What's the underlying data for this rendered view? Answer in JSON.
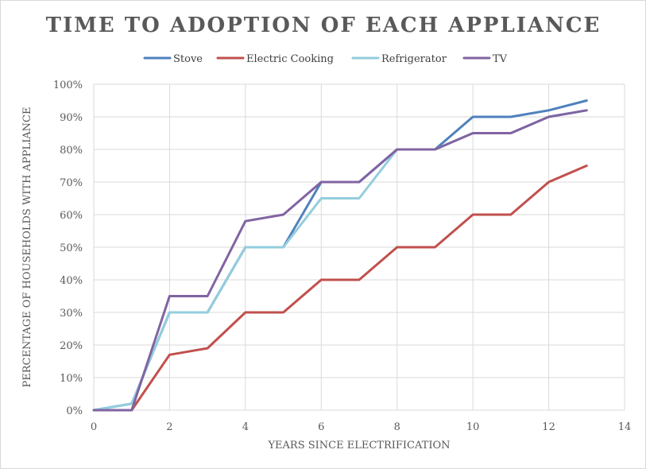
{
  "chart_data": {
    "type": "line",
    "title": "TIME TO ADOPTION OF EACH APPLIANCE",
    "xlabel": "YEARS SINCE ELECTRIFICATION",
    "ylabel": "PERCENTAGE OF HOUSEHOLDS WITH APPLIANCE",
    "xlim": [
      0,
      14
    ],
    "ylim": [
      0,
      100
    ],
    "x_ticks": [
      0,
      2,
      4,
      6,
      8,
      10,
      12,
      14
    ],
    "y_ticks": [
      0,
      10,
      20,
      30,
      40,
      50,
      60,
      70,
      80,
      90,
      100
    ],
    "y_tick_suffix": "%",
    "grid": true,
    "legend_position": "top",
    "x": [
      0,
      1,
      2,
      3,
      4,
      5,
      6,
      7,
      8,
      9,
      10,
      11,
      12,
      13
    ],
    "series": [
      {
        "name": "Stove",
        "color": "#4f81bd",
        "values": [
          0,
          2,
          30,
          30,
          50,
          50,
          70,
          70,
          80,
          80,
          90,
          90,
          92,
          95
        ]
      },
      {
        "name": "Electric Cooking",
        "color": "#c0504d",
        "values": [
          0,
          0,
          17,
          19,
          30,
          30,
          40,
          40,
          50,
          50,
          60,
          60,
          70,
          75
        ]
      },
      {
        "name": "Refrigerator",
        "color": "#93cddd",
        "values": [
          0,
          2,
          30,
          30,
          50,
          50,
          65,
          65,
          80,
          80,
          85,
          85,
          90,
          92
        ]
      },
      {
        "name": "TV",
        "color": "#8064a2",
        "values": [
          0,
          0,
          35,
          35,
          58,
          60,
          70,
          70,
          80,
          80,
          85,
          85,
          90,
          92
        ]
      }
    ]
  }
}
